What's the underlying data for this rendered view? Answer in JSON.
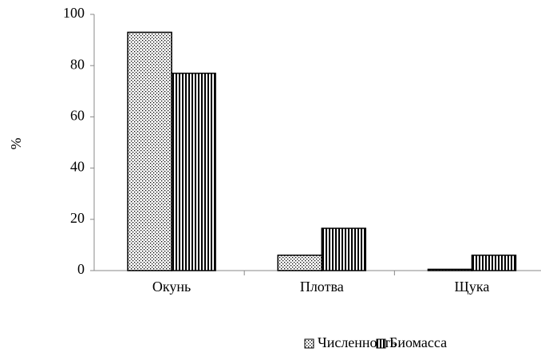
{
  "chart_data": {
    "type": "bar",
    "y_label": "%",
    "categories": [
      "Окунь",
      "Плотва",
      "Щука"
    ],
    "series": [
      {
        "name": "Численность",
        "color": "#000000",
        "pattern": "dots",
        "values": [
          93,
          6,
          0.5
        ]
      },
      {
        "name": "Биомасса",
        "color": "#000000",
        "pattern": "stripes",
        "values": [
          77,
          16.5,
          6
        ]
      }
    ],
    "ylim": [
      0,
      100
    ],
    "yticks": [
      0,
      20,
      40,
      60,
      80,
      100
    ],
    "grid": false
  }
}
